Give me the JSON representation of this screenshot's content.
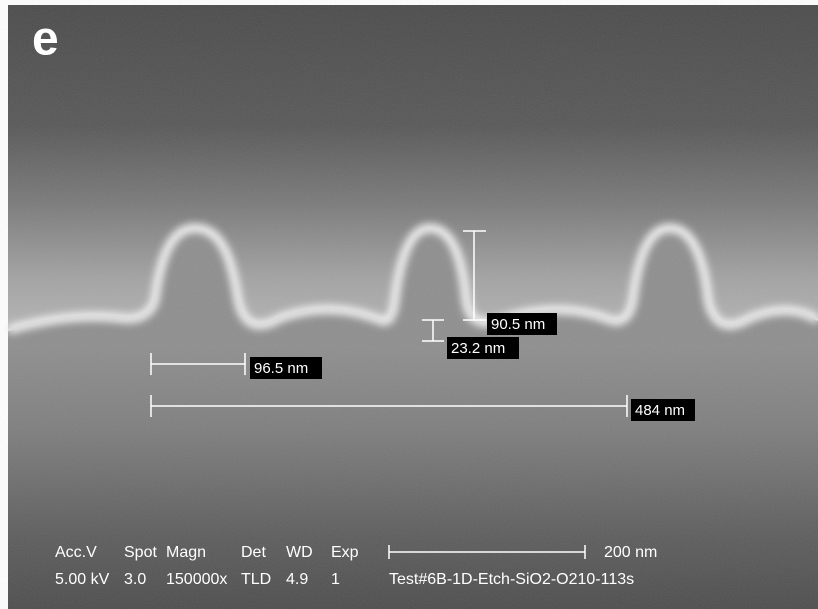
{
  "panel_label": "e",
  "measurements": [
    {
      "label": "90.5 nm"
    },
    {
      "label": "23.2 nm"
    },
    {
      "label": "96.5 nm"
    },
    {
      "label": "484 nm"
    }
  ],
  "info_bar": {
    "headers": [
      "Acc.V",
      "Spot",
      "Magn",
      "Det",
      "WD",
      "Exp"
    ],
    "values": [
      "5.00 kV",
      "3.0",
      "150000x",
      "TLD",
      "4.9",
      "1"
    ],
    "scale_bar_label": "200 nm",
    "sample_id": "Test#6B-1D-Etch-SiO2-O210-113s"
  }
}
